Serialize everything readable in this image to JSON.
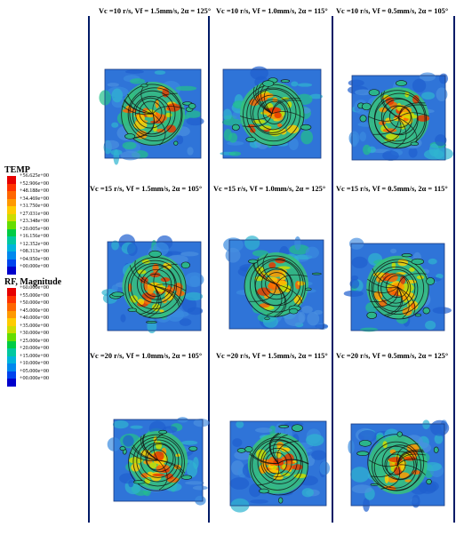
{
  "temp_legend": {
    "title": "TEMP",
    "labels": [
      "+56.625e+00",
      "+52.906e+00",
      "+48.188e+00",
      "+34.469e+00",
      "+31.750e+00",
      "+27.031e+00",
      "+23.348e+00",
      "+20.005e+00",
      "+16.156e+00",
      "+12.352e+00",
      "+08.313e+00",
      "+04.950e+00",
      "+00.000e+00"
    ],
    "colors": [
      "#e60000",
      "#ff3300",
      "#ff6600",
      "#ff9900",
      "#ffcc00",
      "#ccdd00",
      "#66dd00",
      "#00cc44",
      "#00c8a0",
      "#00b4dc",
      "#0088ee",
      "#0044ee",
      "#0000cc"
    ]
  },
  "rf_legend": {
    "title": "RF, Magnitude",
    "labels": [
      "+60.000e+00",
      "+55.000e+00",
      "+50.000e+00",
      "+45.000e+00",
      "+40.000e+00",
      "+35.000e+00",
      "+30.000e+00",
      "+25.000e+00",
      "+20.000e+00",
      "+15.000e+00",
      "+10.000e+00",
      "+05.000e+00",
      "+00.000e+00"
    ],
    "colors": [
      "#e60000",
      "#ff3300",
      "#ff6600",
      "#ff9900",
      "#ffcc00",
      "#ccdd00",
      "#66dd00",
      "#00cc44",
      "#00c8a0",
      "#00b4dc",
      "#0088ee",
      "#0044ee",
      "#0000cc"
    ]
  },
  "panels": [
    {
      "title": "Vc =10 r/s, Vf = 1.5mm/s, 2α = 125°"
    },
    {
      "title": "Vc =10 r/s, Vf = 1.0mm/s, 2α = 115°"
    },
    {
      "title": "Vc =10 r/s, Vf = 0.5mm/s, 2α = 105°"
    },
    {
      "title": "Vc =15 r/s, Vf = 1.5mm/s, 2α = 105°"
    },
    {
      "title": "Vc =15 r/s, Vf = 1.0mm/s, 2α = 125°"
    },
    {
      "title": "Vc =15 r/s, Vf = 0.5mm/s, 2α = 115°"
    },
    {
      "title": "Vc =20 r/s, Vf = 1.0mm/s, 2α = 105°"
    },
    {
      "title": "Vc =20 r/s, Vf = 1.5mm/s, 2α = 115°"
    },
    {
      "title": "Vc =20 r/s, Vf = 0.5mm/s, 2α = 125°"
    }
  ]
}
